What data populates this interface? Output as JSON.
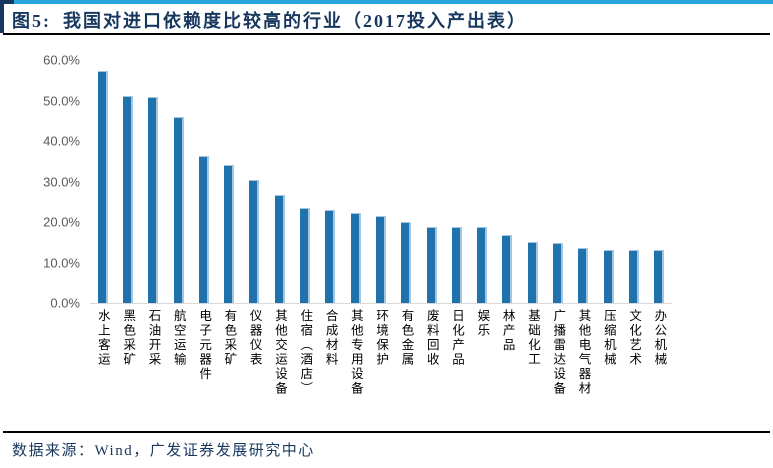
{
  "header": {
    "figure_label": "图5:",
    "title": "我国对进口依赖度比较高的行业（2017投入产出表）"
  },
  "footer": {
    "source": "数据来源：Wind，广发证券发展研究中心"
  },
  "colors": {
    "accent_top": "#29A6DF",
    "navy": "#17375E",
    "bar": "#1F72AC",
    "bar_edge": "#A3C7E3",
    "axis_text": "#595959",
    "category_text": "#404040",
    "axis_line": "#D9D9D9",
    "divider": "#000000"
  },
  "chart_data": {
    "type": "bar",
    "title": "我国对进口依赖度比较高的行业（2017投入产出表）",
    "categories": [
      "水上客运",
      "黑色采矿",
      "石油开采",
      "航空运输",
      "电子元器件",
      "有色采矿",
      "仪器仪表",
      "其他交运设备",
      "住宿（酒店）",
      "合成材料",
      "其他专用设备",
      "环境保护",
      "有色金属",
      "废料回收",
      "日化产品",
      "娱乐",
      "林产品",
      "基础化工",
      "广播雷达设备",
      "其他电气器材",
      "压缩机械",
      "文化艺术",
      "办公机械"
    ],
    "values": [
      57.4,
      51.2,
      51.0,
      45.9,
      36.2,
      34.1,
      30.5,
      26.8,
      23.4,
      23.0,
      22.3,
      21.4,
      19.9,
      18.9,
      18.7,
      18.7,
      16.7,
      15.0,
      14.8,
      13.6,
      13.2,
      13.2,
      13.0
    ],
    "unit": "%",
    "xlabel": "",
    "ylabel": "",
    "ylim": [
      0,
      60
    ],
    "yticks": [
      0,
      10,
      20,
      30,
      40,
      50,
      60
    ],
    "ytick_labels": [
      "0.0%",
      "10.0%",
      "20.0%",
      "30.0%",
      "40.0%",
      "50.0%",
      "60.0%"
    ],
    "grid": false,
    "legend": false,
    "bar_orientation": "vertical",
    "category_label_orientation": "vertical-text"
  }
}
